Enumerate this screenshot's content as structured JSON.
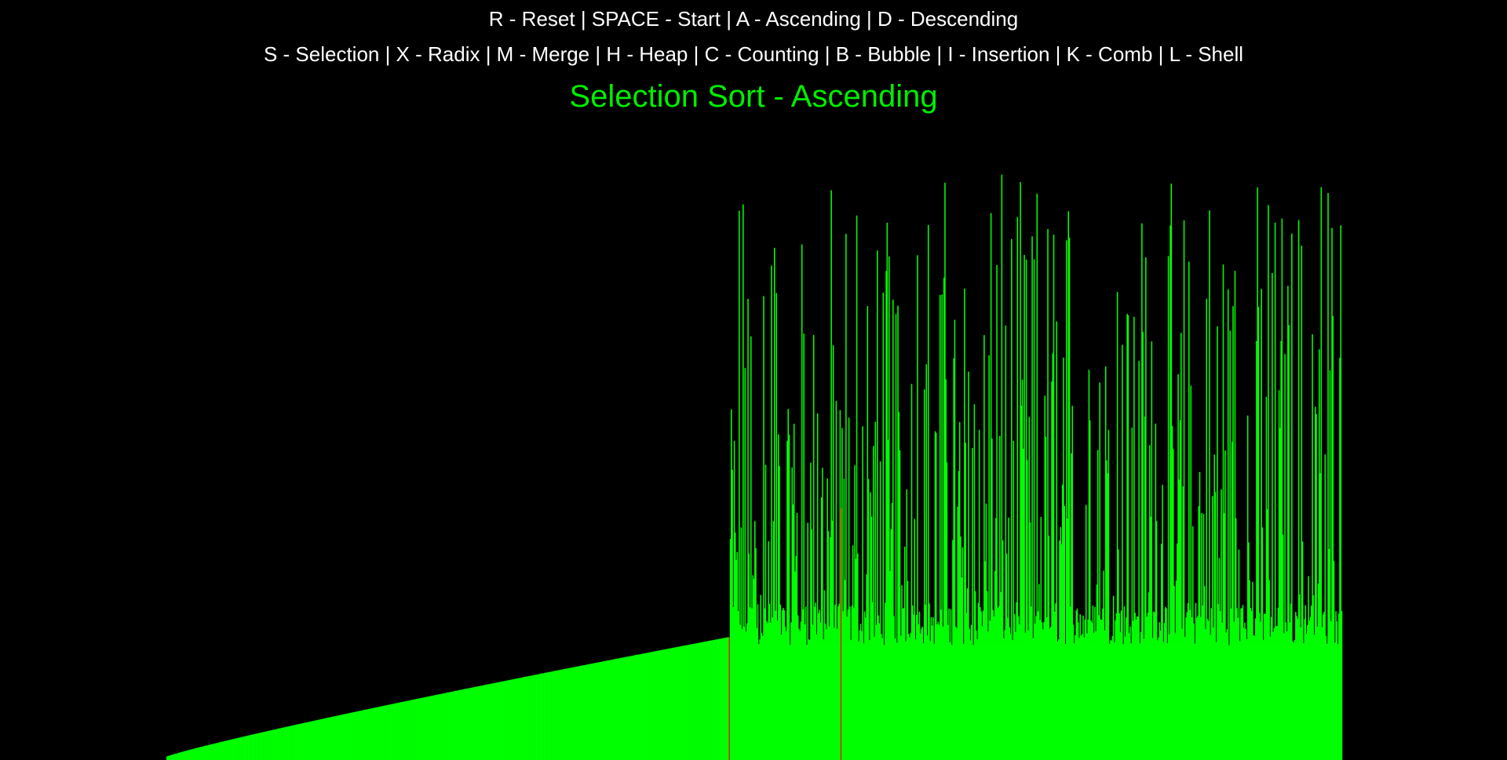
{
  "controls": {
    "line1": "R - Reset | SPACE - Start | A - Ascending | D - Descending",
    "line2": "S - Selection | X - Radix | M - Merge | H - Heap | C - Counting | B - Bubble | I - Insertion | K - Comb | L - Shell"
  },
  "title": {
    "text": "Selection Sort - Ascending"
  },
  "colors": {
    "background": "#000000",
    "text": "#ffffff",
    "title": "#00ee00",
    "bar": "#00ff00",
    "highlight": "#ff0000"
  },
  "visualization": {
    "algorithm": "Selection Sort",
    "order": "Ascending",
    "bar_count": 1200,
    "sorted_count": 575,
    "highlighted_indices": [
      574,
      688
    ],
    "value_max": 1000,
    "sorted_value_range": [
      6,
      210
    ],
    "unsorted_floor_range": [
      196,
      270
    ],
    "unsorted_spike_max": 1000
  }
}
